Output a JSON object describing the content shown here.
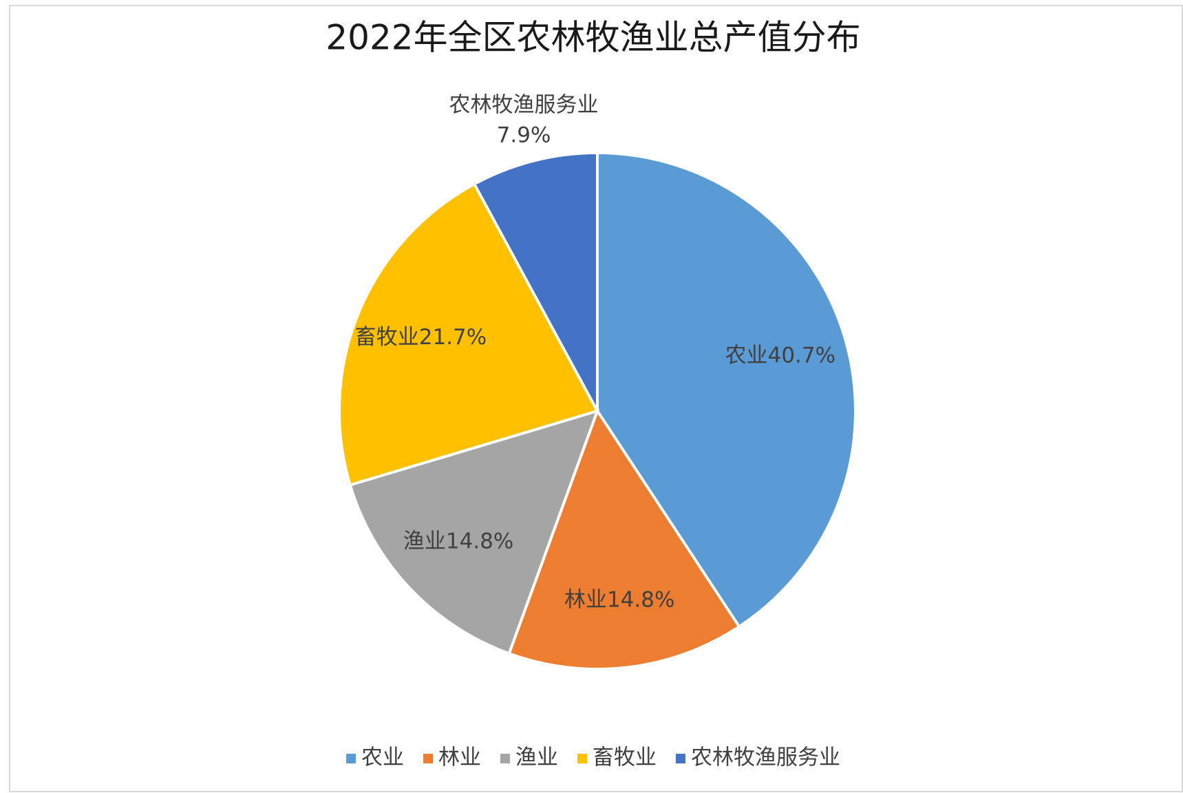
{
  "chart_data": {
    "type": "pie",
    "title": "2022年全区农林牧渔业总产值分布",
    "categories": [
      "农业",
      "林业",
      "渔业",
      "畜牧业",
      "农林牧渔服务业"
    ],
    "values": [
      40.7,
      14.8,
      14.8,
      21.7,
      7.9
    ],
    "value_labels": [
      "40.7%",
      "14.8%",
      "14.8%",
      "21.7%",
      "7.9%"
    ],
    "colors": [
      "#5b9bd5",
      "#ed7d31",
      "#a5a5a5",
      "#ffc000",
      "#4472c4"
    ],
    "legend": "bottom"
  }
}
